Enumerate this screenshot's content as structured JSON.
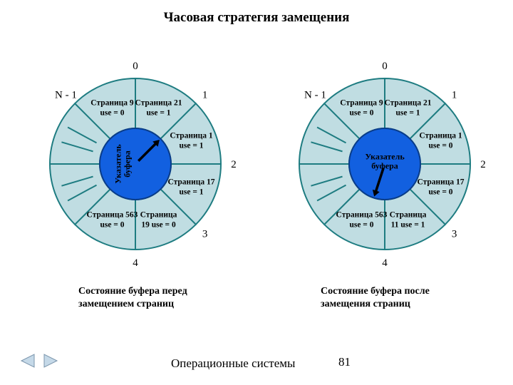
{
  "title": "Часовая стратегия замещения",
  "footer_text": "Операционные\nсистемы",
  "page_number": "81",
  "colors": {
    "ring_fill": "#c0dde2",
    "ring_stroke": "#1e7c81",
    "center_fill": "#1260e0",
    "center_stroke": "#0a3c8a",
    "arrow": "#000000",
    "nav_fill": "#c5d9e8",
    "nav_stroke": "#7a94ab"
  },
  "geometry": {
    "outer_r": 120,
    "inner_r": 50,
    "slice_label_r": 85,
    "out_label_r": 138,
    "n_slices": 8
  },
  "left": {
    "outside_labels": [
      "0",
      "1",
      "2",
      "3",
      "4",
      "",
      "",
      "N - 1"
    ],
    "slices": [
      {
        "empty": false,
        "l1": "Страница 21",
        "l2": "use = 1"
      },
      {
        "empty": false,
        "l1": "Страница 1",
        "l2": "use = 1"
      },
      {
        "empty": false,
        "l1": "Страница 17",
        "l2": "use = 1"
      },
      {
        "empty": false,
        "l1": "Страница",
        "l2": "19 use = 0"
      },
      {
        "empty": false,
        "l1": "Страница 563",
        "l2": "use = 0"
      },
      {
        "empty": true,
        "l1": "",
        "l2": ""
      },
      {
        "empty": true,
        "l1": "",
        "l2": ""
      },
      {
        "empty": false,
        "l1": "Страница 9",
        "l2": "use = 0"
      }
    ],
    "center_text": "Указатель\nбуфера",
    "center_rotated": true,
    "arrow_angle_deg": -45,
    "caption": "Состояние буфера перед\nзамещением страниц"
  },
  "right": {
    "outside_labels": [
      "0",
      "1",
      "2",
      "3",
      "4",
      "",
      "",
      "N - 1"
    ],
    "slices": [
      {
        "empty": false,
        "l1": "Страница 21",
        "l2": "use = 1"
      },
      {
        "empty": false,
        "l1": "Страница 1",
        "l2": "use = 0"
      },
      {
        "empty": false,
        "l1": "Страница 17",
        "l2": "use = 0"
      },
      {
        "empty": false,
        "l1": "Страница",
        "l2": "11 use = 1"
      },
      {
        "empty": false,
        "l1": "Страница 563",
        "l2": "use = 0"
      },
      {
        "empty": true,
        "l1": "",
        "l2": ""
      },
      {
        "empty": true,
        "l1": "",
        "l2": ""
      },
      {
        "empty": false,
        "l1": "Страница 9",
        "l2": "use = 0"
      }
    ],
    "center_text": "Указатель\nбуфера",
    "center_rotated": false,
    "arrow_angle_deg": 108,
    "caption": "Состояние буфера после\nзамещения страниц"
  }
}
